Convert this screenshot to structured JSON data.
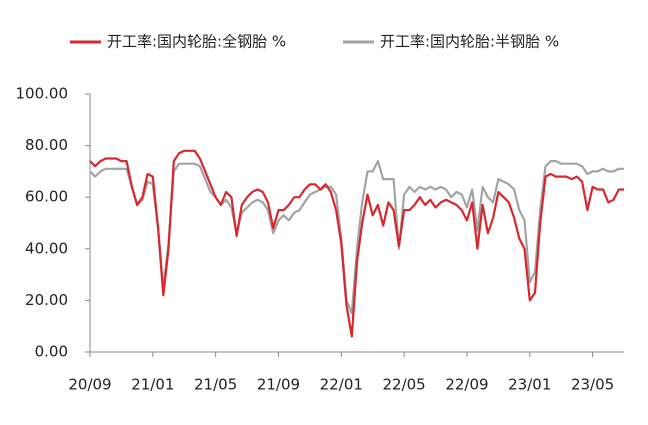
{
  "chart_data": {
    "type": "line",
    "categories": [
      "20/09",
      null,
      null,
      null,
      null,
      null,
      null,
      null,
      null,
      null,
      null,
      null,
      "21/01",
      null,
      null,
      null,
      null,
      null,
      null,
      null,
      null,
      null,
      null,
      null,
      "21/05",
      null,
      null,
      null,
      null,
      null,
      null,
      null,
      null,
      null,
      null,
      null,
      "21/09",
      null,
      null,
      null,
      null,
      null,
      null,
      null,
      null,
      null,
      null,
      null,
      "22/01",
      null,
      null,
      null,
      null,
      null,
      null,
      null,
      null,
      null,
      null,
      null,
      "22/05",
      null,
      null,
      null,
      null,
      null,
      null,
      null,
      null,
      null,
      null,
      null,
      "22/09",
      null,
      null,
      null,
      null,
      null,
      null,
      null,
      null,
      null,
      null,
      null,
      "23/01",
      null,
      null,
      null,
      null,
      null,
      null,
      null,
      null,
      null,
      null,
      null,
      "23/05",
      null,
      null,
      null,
      null,
      null,
      null
    ],
    "series": [
      {
        "name": "开工率:国内轮胎:全钢胎 %",
        "color": "#d7282e",
        "values": [
          74,
          72,
          74,
          75,
          75,
          75,
          74,
          74,
          64,
          57,
          60,
          69,
          68,
          48,
          22,
          40,
          74,
          77,
          78,
          78,
          78,
          75,
          70,
          65,
          60,
          57,
          62,
          60,
          45,
          57,
          60,
          62,
          63,
          62,
          58,
          48,
          55,
          55,
          57,
          60,
          60,
          63,
          65,
          65,
          63,
          65,
          62,
          55,
          42,
          18,
          6,
          35,
          50,
          61,
          53,
          57,
          49,
          58,
          55,
          41,
          55,
          55,
          57,
          60,
          57,
          59,
          56,
          58,
          59,
          58,
          57,
          55,
          51,
          58,
          40,
          57,
          46,
          52,
          62,
          60,
          58,
          52,
          44,
          40,
          20,
          23,
          50,
          68,
          69,
          68,
          68,
          68,
          67,
          68,
          66,
          55,
          64,
          63,
          63,
          58,
          59,
          63,
          63
        ]
      },
      {
        "name": "开工率:国内轮胎:半钢胎 %",
        "color": "#a3a3a3",
        "values": [
          70,
          68,
          70,
          71,
          71,
          71,
          71,
          71,
          64,
          57,
          59,
          66,
          65,
          48,
          25,
          42,
          70,
          73,
          73,
          73,
          73,
          72,
          67,
          62,
          60,
          57,
          59,
          56,
          46,
          54,
          56,
          58,
          59,
          58,
          55,
          46,
          51,
          53,
          51,
          54,
          55,
          58,
          61,
          62,
          63,
          64,
          64,
          61,
          44,
          20,
          15,
          40,
          58,
          70,
          70,
          74,
          67,
          67,
          67,
          40,
          61,
          64,
          62,
          64,
          63,
          64,
          63,
          64,
          63,
          60,
          62,
          61,
          56,
          63,
          47,
          64,
          60,
          58,
          67,
          66,
          65,
          63,
          55,
          51,
          27,
          31,
          55,
          72,
          74,
          74,
          73,
          73,
          73,
          73,
          72,
          69,
          70,
          70,
          71,
          70,
          70,
          71,
          71
        ]
      }
    ],
    "ylim": [
      0,
      100
    ],
    "yticks": [
      {
        "value": 0,
        "label": "0.00"
      },
      {
        "value": 20,
        "label": "20.00"
      },
      {
        "value": 40,
        "label": "40.00"
      },
      {
        "value": 60,
        "label": "60.00"
      },
      {
        "value": 80,
        "label": "80.00"
      },
      {
        "value": 100,
        "label": "100.00"
      }
    ],
    "grid": false
  }
}
